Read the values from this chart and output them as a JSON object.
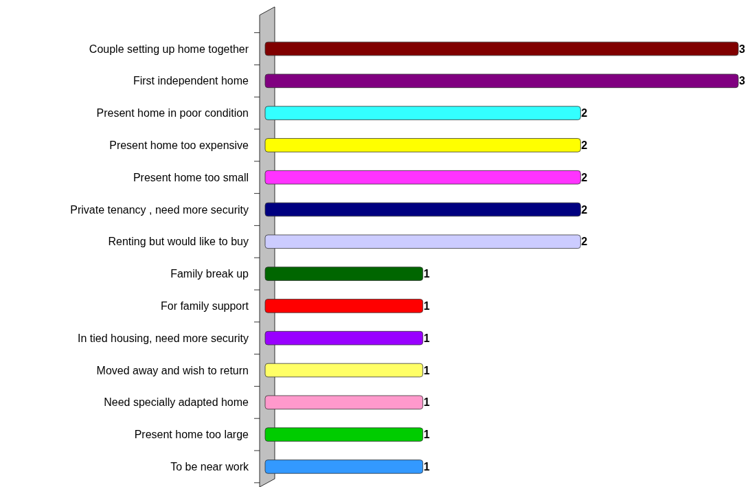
{
  "chart_data": {
    "type": "bar",
    "orientation": "horizontal",
    "data_labels": true,
    "categories": [
      "Couple setting up home together",
      "First independent home",
      "Present home in poor condition",
      "Present home too expensive",
      "Present home too small",
      "Private tenancy , need more security",
      "Renting but would like to buy",
      "Family break up",
      "For family support",
      "In tied housing, need more security",
      "Moved away and wish to return",
      "Need specially adapted home",
      "Present home too large",
      "To be near work"
    ],
    "values": [
      3,
      3,
      2,
      2,
      2,
      2,
      2,
      1,
      1,
      1,
      1,
      1,
      1,
      1
    ],
    "colors": [
      "#800000",
      "#800080",
      "#33ffff",
      "#ffff00",
      "#ff33ff",
      "#000080",
      "#ccccff",
      "#006600",
      "#ff0000",
      "#9900ff",
      "#ffff66",
      "#ff99cc",
      "#00cc00",
      "#3399ff"
    ]
  }
}
